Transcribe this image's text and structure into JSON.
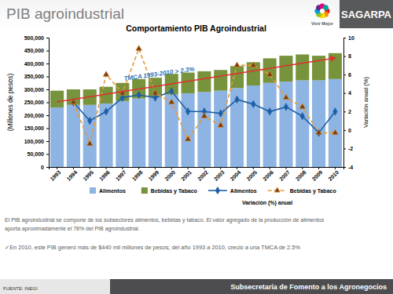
{
  "slide": {
    "title": "PIB agroindustrial",
    "logo_text": "Vivir Mejor",
    "brand": "SAGARPA",
    "paragraphs": [
      "El PIB agroindustrial se compone de los subsectores  alimentos, bebidas y tabaco. El valor agregado de la producción de alimentos",
      "aporta aproximadamente el 78% del PIB agroindustrial."
    ],
    "bullet": "✓En 2010, este PIB generó más de $440 mil millones de pesos;  del año 1993 a 2010, creció a una TMCA de 2.5%",
    "source": "FUENTE: INEGI",
    "footer": "Subsecretaría de Fomento a los Agronegocios"
  },
  "chart_data": {
    "type": "bar",
    "title": "Comportamiento PIB Agroindustrial",
    "y_label": "(Millones de pesos)",
    "y2_label": "Variación anual (%)",
    "legend_title": "Variación (%) anual",
    "annotations": [
      {
        "text": "TMCA 1993-2010 > 2.3%"
      }
    ],
    "categories": [
      "1993",
      "1994",
      "1995",
      "1996",
      "1997",
      "1998",
      "1999",
      "2000",
      "2001",
      "2002",
      "2003",
      "2004",
      "2005",
      "2006",
      "2007",
      "2008",
      "2009",
      "2010"
    ],
    "series": [
      {
        "name": "Alimentos",
        "type": "bar",
        "color": "#8db4e2",
        "values": [
          230000,
          240000,
          240000,
          245000,
          255000,
          265000,
          270000,
          280000,
          285000,
          290000,
          295000,
          305000,
          315000,
          325000,
          330000,
          335000,
          335000,
          340000
        ]
      },
      {
        "name": "Bebidas y Tabaco",
        "type": "bar",
        "color": "#77933c",
        "values": [
          65000,
          60000,
          60000,
          65000,
          70000,
          75000,
          75000,
          80000,
          80000,
          80000,
          80000,
          85000,
          90000,
          95000,
          100000,
          100000,
          95000,
          100000
        ]
      },
      {
        "name": "Alimentos",
        "type": "line",
        "axis": "y2",
        "color": "#1f5fa8",
        "marker": "diamond",
        "line_style": "solid",
        "values": [
          null,
          3.0,
          1.0,
          2.0,
          3.5,
          3.8,
          3.5,
          4.2,
          2.0,
          2.0,
          1.8,
          3.3,
          2.8,
          2.0,
          2.5,
          1.5,
          -0.3,
          2.0
        ]
      },
      {
        "name": "Bebidas y Tabaco",
        "type": "line",
        "axis": "y2",
        "color": "#e59a3a",
        "marker": "triangle",
        "line_style": "dashed",
        "values": [
          null,
          3.0,
          -1.5,
          6.0,
          4.0,
          8.8,
          4.0,
          3.0,
          -1.0,
          1.5,
          0.5,
          7.0,
          7.0,
          6.0,
          3.5,
          2.5,
          -0.3,
          -0.3
        ]
      }
    ],
    "ylim": [
      0,
      500000
    ],
    "yticks": [
      {
        "value": 0,
        "label": "0"
      },
      {
        "value": 50000,
        "label": "50,000"
      },
      {
        "value": 100000,
        "label": "100,000"
      },
      {
        "value": 150000,
        "label": "150,000"
      },
      {
        "value": 200000,
        "label": "200,000"
      },
      {
        "value": 250000,
        "label": "250,000"
      },
      {
        "value": 300000,
        "label": "300,000"
      },
      {
        "value": 350000,
        "label": "350,000"
      },
      {
        "value": 400000,
        "label": "400,000"
      },
      {
        "value": 450000,
        "label": "450,000"
      },
      {
        "value": 500000,
        "label": "500,000"
      }
    ],
    "y2lim": [
      -4,
      10
    ],
    "y2ticks": [
      -4,
      -2,
      0,
      2,
      4,
      6,
      8,
      10
    ],
    "stacked": true,
    "grid": false,
    "legend": "bottom"
  }
}
